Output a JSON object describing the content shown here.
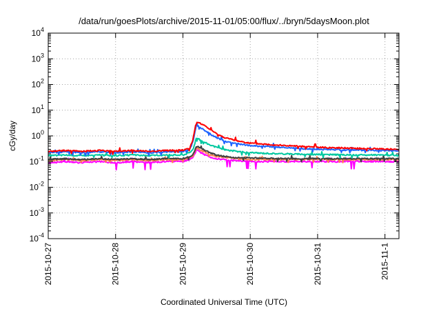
{
  "chart_data": {
    "type": "line",
    "title": "/data/run/goesPlots/archive/2015-11-01/05:00/flux/../bryn/5daysMoon.plot",
    "xlabel": "Coordinated Universal Time (UTC)",
    "ylabel": "cGy/day",
    "yscale": "log",
    "ylim": [
      0.0001,
      10000
    ],
    "xlim": [
      "2015-10-27",
      "2015-11-01 05:00"
    ],
    "grid": true,
    "legend": "none",
    "x_ticks": [
      "2015-10-27",
      "2015-10-28",
      "2015-10-29",
      "2015-10-30",
      "2015-10-31",
      "2015-11-1"
    ],
    "y_ticks": [
      {
        "base": "10",
        "exp": "-4"
      },
      {
        "base": "10",
        "exp": "-3"
      },
      {
        "base": "10",
        "exp": "-2"
      },
      {
        "base": "10",
        "exp": "-1"
      },
      {
        "base": "10",
        "exp": "0"
      },
      {
        "base": "10",
        "exp": "1"
      },
      {
        "base": "10",
        "exp": "2"
      },
      {
        "base": "10",
        "exp": "3"
      },
      {
        "base": "10",
        "exp": "4"
      }
    ],
    "x_units": "days since 2015-10-27 00:00 UTC",
    "series": [
      {
        "color": "#ff00ff",
        "x": [
          0,
          0.25,
          0.5,
          0.75,
          1.0,
          1.25,
          1.5,
          1.75,
          2.0,
          2.1,
          2.15,
          2.2,
          2.3,
          2.4,
          2.5,
          2.6,
          2.7,
          2.8,
          3.0,
          3.5,
          4.0,
          4.5,
          5.0,
          5.2
        ],
        "y": [
          0.09,
          0.1,
          0.09,
          0.1,
          0.09,
          0.1,
          0.09,
          0.1,
          0.1,
          0.12,
          0.14,
          0.28,
          0.2,
          0.15,
          0.13,
          0.12,
          0.11,
          0.11,
          0.1,
          0.1,
          0.1,
          0.1,
          0.1,
          0.1
        ]
      },
      {
        "color": "#ff7f50",
        "x": [
          0,
          0.25,
          0.5,
          0.75,
          1.0,
          1.25,
          1.5,
          1.75,
          2.0,
          2.1,
          2.15,
          2.2,
          2.3,
          2.4,
          2.5,
          2.6,
          2.7,
          2.8,
          3.0,
          3.5,
          4.0,
          4.5,
          5.0,
          5.2
        ],
        "y": [
          0.11,
          0.12,
          0.11,
          0.12,
          0.11,
          0.12,
          0.11,
          0.12,
          0.12,
          0.14,
          0.17,
          0.34,
          0.25,
          0.19,
          0.16,
          0.15,
          0.14,
          0.13,
          0.12,
          0.12,
          0.12,
          0.12,
          0.12,
          0.12
        ]
      },
      {
        "color": "#404040",
        "x": [
          0,
          0.25,
          0.5,
          0.75,
          1.0,
          1.25,
          1.5,
          1.75,
          2.0,
          2.1,
          2.15,
          2.2,
          2.3,
          2.4,
          2.5,
          2.6,
          2.7,
          2.8,
          3.0,
          3.5,
          4.0,
          4.5,
          5.0,
          5.2
        ],
        "y": [
          0.12,
          0.13,
          0.12,
          0.13,
          0.12,
          0.13,
          0.12,
          0.13,
          0.13,
          0.16,
          0.19,
          0.4,
          0.3,
          0.22,
          0.18,
          0.16,
          0.15,
          0.14,
          0.14,
          0.13,
          0.13,
          0.13,
          0.13,
          0.13
        ]
      },
      {
        "color": "#00c8a0",
        "x": [
          0,
          0.25,
          0.5,
          0.75,
          1.0,
          1.25,
          1.5,
          1.75,
          2.0,
          2.1,
          2.15,
          2.2,
          2.3,
          2.4,
          2.5,
          2.6,
          2.7,
          2.8,
          3.0,
          3.5,
          4.0,
          4.5,
          5.0,
          5.2
        ],
        "y": [
          0.17,
          0.18,
          0.17,
          0.18,
          0.17,
          0.18,
          0.17,
          0.18,
          0.18,
          0.22,
          0.3,
          0.85,
          0.6,
          0.45,
          0.35,
          0.3,
          0.27,
          0.25,
          0.22,
          0.2,
          0.19,
          0.18,
          0.18,
          0.17
        ]
      },
      {
        "color": "#1e64ff",
        "x": [
          0,
          0.25,
          0.5,
          0.75,
          1.0,
          1.25,
          1.5,
          1.75,
          2.0,
          2.1,
          2.15,
          2.2,
          2.3,
          2.4,
          2.5,
          2.6,
          2.7,
          2.8,
          3.0,
          3.5,
          4.0,
          4.5,
          5.0,
          5.2
        ],
        "y": [
          0.22,
          0.24,
          0.22,
          0.24,
          0.22,
          0.24,
          0.22,
          0.24,
          0.25,
          0.3,
          0.6,
          2.6,
          1.8,
          1.2,
          0.85,
          0.65,
          0.55,
          0.5,
          0.42,
          0.35,
          0.3,
          0.28,
          0.27,
          0.26
        ]
      },
      {
        "color": "#ff0000",
        "x": [
          0,
          0.25,
          0.5,
          0.75,
          1.0,
          1.25,
          1.5,
          1.75,
          2.0,
          2.1,
          2.15,
          2.2,
          2.3,
          2.4,
          2.5,
          2.6,
          2.7,
          2.8,
          3.0,
          3.5,
          4.0,
          4.5,
          5.0,
          5.2
        ],
        "y": [
          0.25,
          0.27,
          0.25,
          0.27,
          0.25,
          0.27,
          0.25,
          0.27,
          0.28,
          0.33,
          0.75,
          3.6,
          2.7,
          1.8,
          1.2,
          0.9,
          0.75,
          0.65,
          0.52,
          0.42,
          0.36,
          0.33,
          0.31,
          0.29
        ]
      }
    ]
  }
}
